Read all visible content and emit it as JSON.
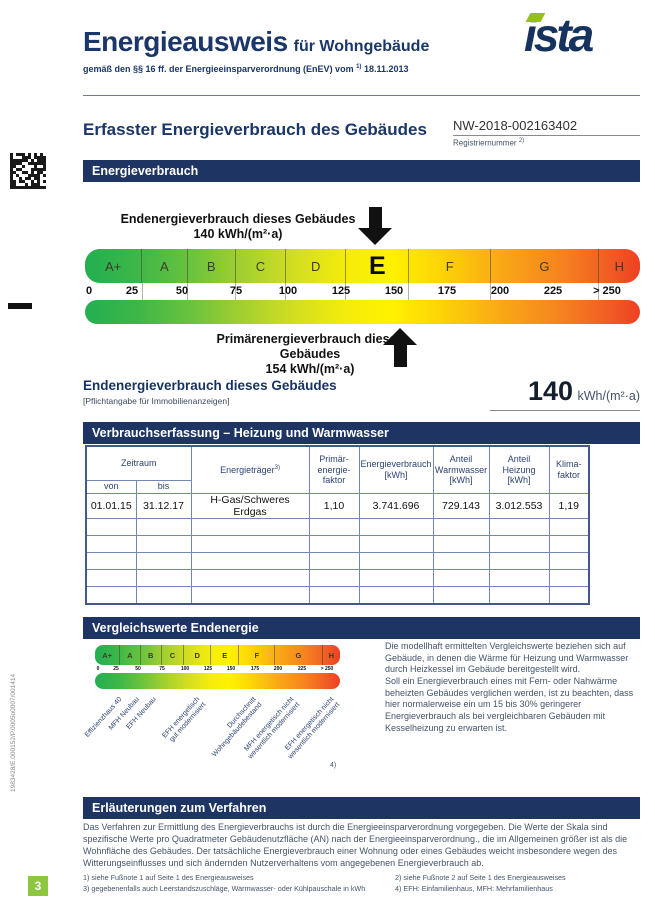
{
  "colors": {
    "brand_navy": "#1b3668",
    "banner_navy": "#1e3563",
    "brand_green": "#8dc63f",
    "scale_green": "#23af52",
    "scale_yellow": "#fff200",
    "scale_red": "#ee4023",
    "body_text": "#44546a"
  },
  "header": {
    "title": "Energieausweis",
    "title_suffix": "für Wohngebäude",
    "subtitle": "gemäß den §§ 16 ff. der Energieeinsparverordnung (EnEV) vom",
    "subtitle_sup": "1)",
    "subtitle_date": "18.11.2013",
    "logo_text": "ista"
  },
  "main_title": "Erfasster Energieverbrauch des Gebäudes",
  "registration": {
    "number": "NW-2018-002163402",
    "label": "Registriernummer",
    "sup": "2)"
  },
  "energy_section": {
    "banner": "Energieverbrauch",
    "end_label_line1": "Endenergieverbrauch dieses Gebäudes",
    "end_label_line2": "140 kWh/(m²·a)",
    "end_value": 140,
    "primary_label_line1": "Primärenergieverbrauch dieses Gebäudes",
    "primary_label_line2": "154 kWh/(m²·a)",
    "primary_value": 154
  },
  "scale": {
    "bands": [
      "A+",
      "A",
      "B",
      "C",
      "D",
      "E",
      "F",
      "G",
      "H"
    ],
    "selected_band": "E",
    "ticks": [
      "0",
      "25",
      "50",
      "75",
      "100",
      "125",
      "150",
      "175",
      "200",
      "225",
      "> 250"
    ],
    "band_upper_limits_kwh": [
      30,
      50,
      75,
      100,
      130,
      160,
      200,
      250,
      null
    ]
  },
  "summary": {
    "title": "Endenergieverbrauch dieses Gebäudes",
    "note": "[Pflichtangabe für Immobilienanzeigen]",
    "value": "140",
    "unit": "kWh/(m²·a)"
  },
  "table": {
    "banner": "Verbrauchserfassung – Heizung und Warmwasser",
    "h_zeitraum": "Zeitraum",
    "h_von": "von",
    "h_bis": "bis",
    "h_traeger": "Energieträger",
    "h_traeger_sup": "3)",
    "h_primaer": "Primär-\nenergie-\nfaktor",
    "h_verbrauch": "Energieverbrauch\n[kWh]",
    "h_warmwasser": "Anteil\nWarmwasser\n[kWh]",
    "h_heizung": "Anteil Heizung\n[kWh]",
    "h_klima": "Klima-\nfaktor",
    "row": [
      "01.01.15",
      "31.12.17",
      "H-Gas/Schweres Erdgas",
      "1,10",
      "3.741.696",
      "729.143",
      "3.012.553",
      "1,19"
    ],
    "empty_row_count": 5
  },
  "compare": {
    "banner": "Vergleichswerte Endenergie",
    "labels": [
      "Effizienzhaus 40",
      "MFH Neubau",
      "EFH Neubau",
      "EFH energetisch\ngut modernisiert",
      "Durchschnitt\nWohngebäudebestand",
      "MFH energetisch nicht\nwesentlich modernisiert",
      "EFH energetisch nicht\nwesentlich modernisiert"
    ],
    "labels_sup": "4)",
    "text1": "Die modellhaft ermittelten Vergleichswerte beziehen sich auf Gebäude, in denen die Wärme für Heizung und Warmwasser durch Heizkessel im Gebäude bereitgestellt wird.",
    "text2": "Soll ein Energieverbrauch eines mit Fern- oder Nahwärme beheizten Gebäudes verglichen werden, ist zu beachten, dass hier normalerweise ein um 15 bis 30% geringerer Energieverbrauch als bei vergleichbaren Gebäuden mit Kesselheizung zu erwarten ist."
  },
  "method": {
    "banner": "Erläuterungen zum Verfahren",
    "text": "Das Verfahren zur Ermittlung des Energieverbrauchs ist durch die Energieeinsparverordnung vorgegeben. Die Werte der Skala sind spezifische Werte pro Quadratmeter Gebäudenutzfläche (AN) nach der Energieeinsparverordnung., die im Allgemeinen größer ist als die Wohnfläche des Gebäudes. Der tatsächliche Energieverbrauch einer Wohnung oder eines Gebäudes weicht insbesondere wegen des Witterungseinflusses und sich ändernden Nutzerverhaltens vom angegebenen Energieverbrauch ab."
  },
  "footnotes": {
    "f1_num": "1)",
    "f1_text": "siehe Fußnote 1 auf Seite 1 des Energieausweises",
    "f2_num": "2)",
    "f2_text": "siehe Fußnote 2 auf Seite 1 des Energieausweises",
    "f3_num": "3)",
    "f3_text": "gegebenenfalls auch Leerstandszuschläge, Warmwasser- oder Kühlpauschale in kWh",
    "f4_num": "4)",
    "f4_text": "EFH: Einfamilienhaus, MFH: Mehrfamilienhaus"
  },
  "margin": {
    "side_code": "1983428/E.000152/P.0005o0007/001414",
    "page_number": "3"
  }
}
